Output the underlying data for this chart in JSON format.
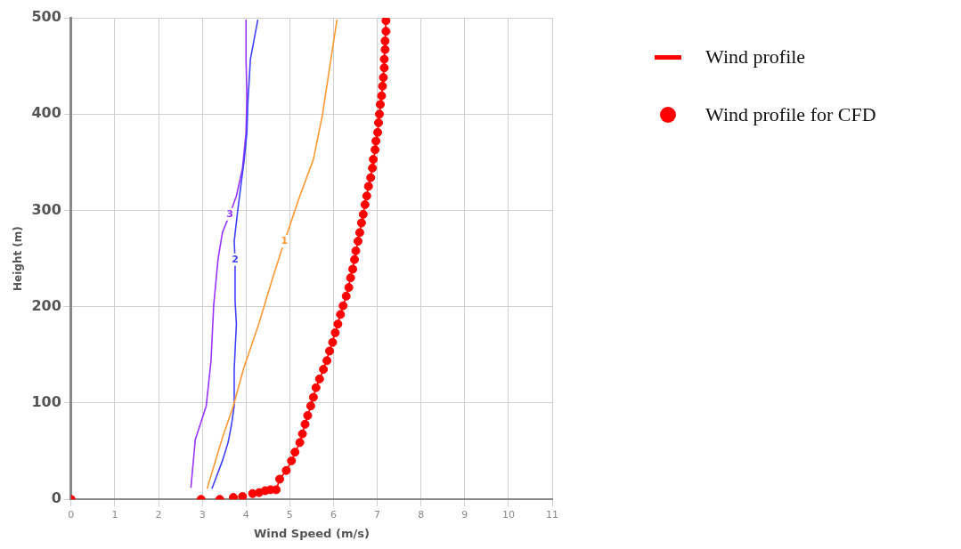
{
  "chart_data": {
    "type": "line",
    "xlabel": "Wind Speed (m/s)",
    "ylabel": "Height (m)",
    "xlim": [
      0,
      11
    ],
    "xticks": [
      0,
      1,
      2,
      3,
      4,
      5,
      6,
      7,
      8,
      9,
      10,
      11
    ],
    "ylim": [
      0,
      500
    ],
    "yticks": [
      0,
      100,
      200,
      300,
      400,
      500
    ],
    "grid": true,
    "legend": "right",
    "series": [
      {
        "type": "line",
        "name": "1",
        "color": "#ff9933",
        "x": [
          3.11,
          3.46,
          3.71,
          3.94,
          4.29,
          4.61,
          4.88,
          5.23,
          5.54,
          5.75,
          5.91,
          6.08
        ],
        "values": [
          11,
          64,
          97,
          135,
          182,
          230,
          268,
          315,
          353,
          400,
          448,
          498
        ]
      },
      {
        "type": "line",
        "name": "2",
        "color": "#4040ff",
        "x": [
          3.22,
          3.46,
          3.59,
          3.67,
          3.73,
          3.73,
          3.75,
          3.78,
          3.75,
          3.75,
          3.73,
          3.8,
          3.88,
          3.96,
          4.02,
          4.04,
          4.1,
          4.27
        ],
        "values": [
          11,
          40,
          59,
          78,
          97,
          135,
          154,
          182,
          206,
          249,
          268,
          296,
          325,
          353,
          381,
          410,
          457,
          498
        ]
      },
      {
        "type": "line",
        "name": "3",
        "color": "#9933ff",
        "x": [
          2.74,
          2.84,
          2.97,
          3.09,
          3.2,
          3.26,
          3.36,
          3.46,
          3.63,
          3.78,
          3.92,
          4.0,
          4.02,
          4.0,
          4.0
        ],
        "values": [
          12,
          62,
          80,
          97,
          144,
          201,
          249,
          277,
          296,
          315,
          344,
          381,
          419,
          457,
          498
        ]
      },
      {
        "type": "line",
        "name": "Wind profile",
        "color": "#ff0000",
        "x": [
          4.69,
          4.77,
          4.92,
          5.04,
          5.23,
          5.35,
          5.48,
          5.6,
          5.77,
          5.91,
          6.04,
          6.16,
          6.29,
          6.39,
          6.48,
          6.56,
          6.64,
          6.72,
          6.8,
          6.89,
          6.95,
          7.01,
          7.05,
          7.1,
          7.14,
          7.16,
          7.18,
          7.2
        ],
        "values": [
          10,
          21,
          30,
          40,
          59,
          78,
          97,
          116,
          135,
          154,
          173,
          192,
          211,
          230,
          249,
          268,
          287,
          306,
          325,
          344,
          363,
          381,
          400,
          419,
          438,
          457,
          476,
          497
        ]
      },
      {
        "type": "scatter",
        "name": "Wind profile for CFD",
        "color": "#ff0000",
        "marker": "circle",
        "x": [
          0,
          2.97,
          3.4,
          3.71,
          3.92,
          4.15,
          4.3,
          4.44,
          4.56,
          4.69,
          4.77,
          4.92,
          5.04,
          5.12,
          5.23,
          5.29,
          5.35,
          5.41,
          5.48,
          5.54,
          5.6,
          5.68,
          5.77,
          5.85,
          5.91,
          5.98,
          6.04,
          6.1,
          6.16,
          6.22,
          6.29,
          6.35,
          6.39,
          6.44,
          6.48,
          6.51,
          6.56,
          6.6,
          6.64,
          6.68,
          6.72,
          6.76,
          6.8,
          6.85,
          6.89,
          6.91,
          6.95,
          6.97,
          7.01,
          7.03,
          7.05,
          7.07,
          7.1,
          7.12,
          7.14,
          7.16,
          7.16,
          7.18,
          7.18,
          7.2,
          7.2
        ],
        "values": [
          0,
          0,
          0,
          2,
          3,
          6,
          7,
          9,
          10,
          10,
          21,
          30,
          40,
          49,
          59,
          68,
          78,
          87,
          97,
          106,
          116,
          125,
          135,
          144,
          154,
          163,
          173,
          182,
          192,
          201,
          211,
          220,
          230,
          239,
          249,
          258,
          268,
          277,
          287,
          296,
          306,
          315,
          325,
          334,
          344,
          353,
          363,
          372,
          381,
          391,
          400,
          410,
          419,
          429,
          438,
          448,
          457,
          467,
          476,
          486,
          497
        ]
      }
    ]
  }
}
